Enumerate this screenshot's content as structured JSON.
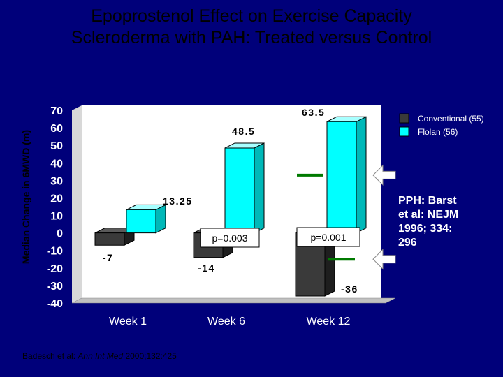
{
  "title": {
    "line1": "Epoprostenol Effect on Exercise Capacity",
    "line2": "Scleroderma with PAH: Treated versus Control"
  },
  "side_note": {
    "lines": [
      "PPH: Barst",
      "et al: NEJM",
      "1996; 334:",
      "296"
    ]
  },
  "citation": {
    "prefix": "Badesch et al: ",
    "journal": "Ann Int Med",
    "suffix": " 2000;132:425"
  },
  "pvalues": [
    "p=0.003",
    "p=0.001"
  ],
  "reference_arrows": [
    {
      "value": 33
    },
    {
      "value": -15
    }
  ],
  "colors": {
    "background": "#00007a",
    "conventional": "#3a3a3a",
    "flolan": "#00ffff",
    "wall": "#ffffff",
    "floor": "#c0c0c0",
    "marker": "#007a00",
    "axis_text": "#ffffff",
    "label_text": "#000000"
  },
  "chart_data": {
    "type": "bar",
    "title": "Epoprostenol Effect on Exercise Capacity — Scleroderma with PAH: Treated versus Control",
    "xlabel": "",
    "ylabel": "Median Change in 6MWD (m)",
    "ylim": [
      -40,
      70
    ],
    "yticks": [
      "70",
      "60",
      "50",
      "40",
      "30",
      "20",
      "10",
      "0",
      "-10",
      "-20",
      "-30",
      "-40"
    ],
    "categories": [
      "Week 1",
      "Week 6",
      "Week 12"
    ],
    "series": [
      {
        "name": "Conventional (55)",
        "values": [
          -7,
          -14,
          -36
        ],
        "labels": [
          "-7",
          "-14",
          "-36"
        ]
      },
      {
        "name": "Flolan (56)",
        "values": [
          13.25,
          48.5,
          63.5
        ],
        "labels": [
          "13.25",
          "48.5",
          "63.5"
        ]
      }
    ],
    "legend": "top-right"
  }
}
